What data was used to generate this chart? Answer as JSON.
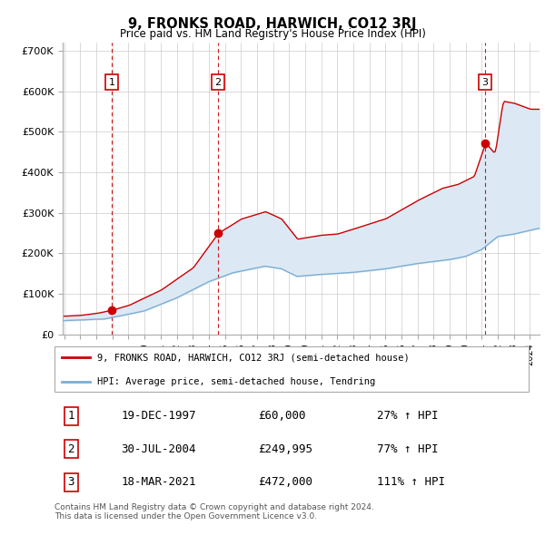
{
  "title": "9, FRONKS ROAD, HARWICH, CO12 3RJ",
  "subtitle": "Price paid vs. HM Land Registry's House Price Index (HPI)",
  "ylabel_ticks": [
    "£0",
    "£100K",
    "£200K",
    "£300K",
    "£400K",
    "£500K",
    "£600K",
    "£700K"
  ],
  "ytick_vals": [
    0,
    100000,
    200000,
    300000,
    400000,
    500000,
    600000,
    700000
  ],
  "ylim": [
    0,
    720000
  ],
  "xlim_start": 1994.9,
  "xlim_end": 2024.6,
  "sale_dates": [
    1997.96,
    2004.57,
    2021.21
  ],
  "sale_prices": [
    60000,
    249995,
    472000
  ],
  "sale_labels": [
    "1",
    "2",
    "3"
  ],
  "legend_line1": "9, FRONKS ROAD, HARWICH, CO12 3RJ (semi-detached house)",
  "legend_line2": "HPI: Average price, semi-detached house, Tendring",
  "table_rows": [
    [
      "1",
      "19-DEC-1997",
      "£60,000",
      "27% ↑ HPI"
    ],
    [
      "2",
      "30-JUL-2004",
      "£249,995",
      "77% ↑ HPI"
    ],
    [
      "3",
      "18-MAR-2021",
      "£472,000",
      "111% ↑ HPI"
    ]
  ],
  "footnote": "Contains HM Land Registry data © Crown copyright and database right 2024.\nThis data is licensed under the Open Government Licence v3.0.",
  "red_line_color": "#cc0000",
  "blue_line_color": "#7bafd4",
  "fill_color": "#dce9f5",
  "vline_color": "#cc0000",
  "grid_color": "#cccccc",
  "background_color": "#ffffff"
}
